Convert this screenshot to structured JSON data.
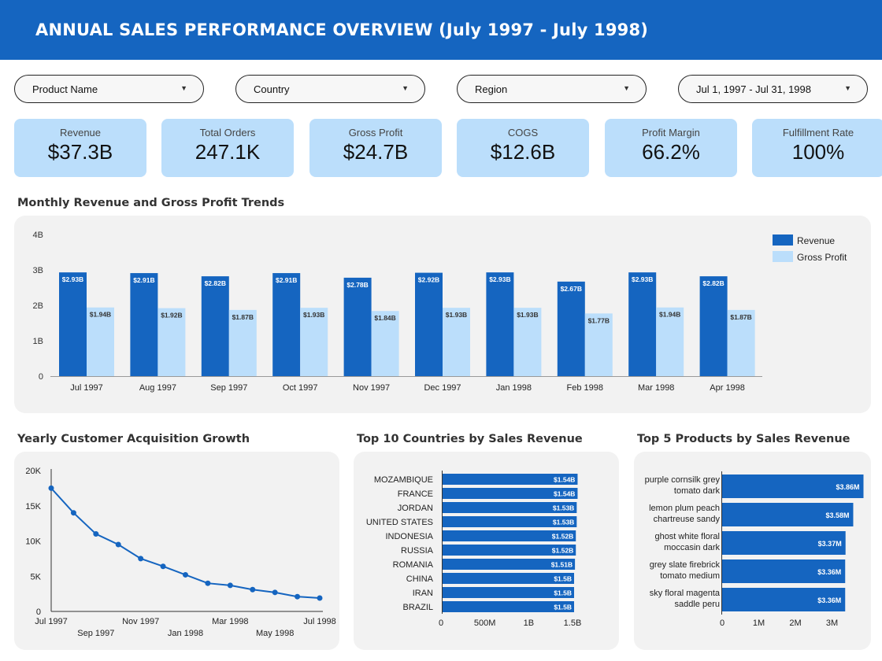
{
  "header": {
    "title": "ANNUAL SALES PERFORMANCE OVERVIEW (July 1997 - July 1998)"
  },
  "filters": [
    {
      "label": "Product Name"
    },
    {
      "label": "Country"
    },
    {
      "label": "Region"
    },
    {
      "label": "Jul 1, 1997 - Jul 31, 1998"
    }
  ],
  "kpis": [
    {
      "title": "Revenue",
      "value": "$37.3B"
    },
    {
      "title": "Total Orders",
      "value": "247.1K"
    },
    {
      "title": "Gross Profit",
      "value": "$24.7B"
    },
    {
      "title": "COGS",
      "value": "$12.6B"
    },
    {
      "title": "Profit Margin",
      "value": "66.2%"
    },
    {
      "title": "Fulfillment Rate",
      "value": "100%"
    }
  ],
  "colors": {
    "header": "#1565c0",
    "primary": "#1565c0",
    "secondary": "#bbdefb",
    "kpi_bg": "#bbdefb",
    "panel": "#f2f2f2"
  },
  "chart_data": [
    {
      "type": "bar",
      "title": "Monthly Revenue and Gross Profit Trends",
      "categories": [
        "Jul 1997",
        "Aug 1997",
        "Sep 1997",
        "Oct 1997",
        "Nov 1997",
        "Dec 1997",
        "Jan 1998",
        "Feb 1998",
        "Mar 1998",
        "Apr 1998"
      ],
      "series": [
        {
          "name": "Revenue",
          "values": [
            2.93,
            2.91,
            2.82,
            2.91,
            2.78,
            2.92,
            2.93,
            2.67,
            2.93,
            2.82
          ],
          "labels": [
            "$2.93B",
            "$2.91B",
            "$2.82B",
            "$2.91B",
            "$2.78B",
            "$2.92B",
            "$2.93B",
            "$2.67B",
            "$2.93B",
            "$2.82B"
          ]
        },
        {
          "name": "Gross Profit",
          "values": [
            1.94,
            1.92,
            1.87,
            1.93,
            1.84,
            1.93,
            1.93,
            1.77,
            1.94,
            1.87
          ],
          "labels": [
            "$1.94B",
            "$1.92B",
            "$1.87B",
            "$1.93B",
            "$1.84B",
            "$1.93B",
            "$1.93B",
            "$1.77B",
            "$1.94B",
            "$1.87B"
          ]
        }
      ],
      "ylim": [
        0,
        4
      ],
      "yticks": [
        0,
        1,
        2,
        3,
        4
      ],
      "ytick_labels": [
        "0",
        "1B",
        "2B",
        "3B",
        "4B"
      ],
      "legend": "top-right",
      "grid": false
    },
    {
      "type": "line",
      "title": "Yearly Customer Acquisition Growth",
      "x": [
        "Jul 1997",
        "Aug 1997",
        "Sep 1997",
        "Oct 1997",
        "Nov 1997",
        "Dec 1997",
        "Jan 1998",
        "Feb 1998",
        "Mar 1998",
        "Apr 1998",
        "May 1998",
        "Jun 1998",
        "Jul 1998"
      ],
      "values": [
        17500,
        14000,
        11000,
        9500,
        7500,
        6400,
        5200,
        4000,
        3700,
        3100,
        2700,
        2100,
        1900
      ],
      "ylim": [
        0,
        20000
      ],
      "yticks": [
        0,
        5000,
        10000,
        15000,
        20000
      ],
      "ytick_labels": [
        "0",
        "5K",
        "10K",
        "15K",
        "20K"
      ],
      "xtick_labels_top": [
        "Jul 1997",
        "Nov 1997",
        "Mar 1998",
        "Jul 1998"
      ],
      "xtick_labels_bottom": [
        "Sep 1997",
        "Jan 1998",
        "May 1998"
      ],
      "grid": false
    },
    {
      "type": "bar",
      "orientation": "horizontal",
      "title": "Top 10 Countries by Sales Revenue",
      "categories": [
        "MOZAMBIQUE",
        "FRANCE",
        "JORDAN",
        "UNITED STATES",
        "INDONESIA",
        "RUSSIA",
        "ROMANIA",
        "CHINA",
        "IRAN",
        "BRAZIL"
      ],
      "values": [
        1.54,
        1.54,
        1.53,
        1.53,
        1.52,
        1.52,
        1.51,
        1.5,
        1.5,
        1.5
      ],
      "labels": [
        "$1.54B",
        "$1.54B",
        "$1.53B",
        "$1.53B",
        "$1.52B",
        "$1.52B",
        "$1.51B",
        "$1.5B",
        "$1.5B",
        "$1.5B"
      ],
      "xlim": [
        0,
        1.5
      ],
      "xtick_labels": [
        "0",
        "500M",
        "1B",
        "1.5B"
      ]
    },
    {
      "type": "bar",
      "orientation": "horizontal",
      "title": "Top 5 Products by Sales Revenue",
      "categories": [
        [
          "purple cornsilk grey",
          "tomato dark"
        ],
        [
          "lemon plum peach",
          "chartreuse sandy"
        ],
        [
          "ghost white floral",
          "moccasin dark"
        ],
        [
          "grey slate firebrick",
          "tomato medium"
        ],
        [
          "sky floral magenta",
          "saddle peru"
        ]
      ],
      "values": [
        3.86,
        3.58,
        3.37,
        3.36,
        3.36
      ],
      "labels": [
        "$3.86M",
        "$3.58M",
        "$3.37M",
        "$3.36M",
        "$3.36M"
      ],
      "xtick_labels": [
        "0",
        "1M",
        "2M",
        "3M"
      ]
    }
  ]
}
